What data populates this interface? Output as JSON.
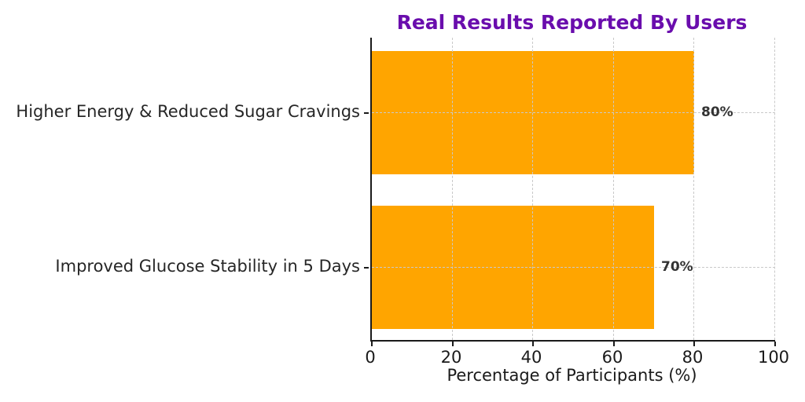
{
  "chart_data": {
    "type": "bar",
    "orientation": "horizontal",
    "title": "Real Results Reported By Users",
    "categories": [
      "Higher Energy & Reduced Sugar Cravings",
      "Improved Glucose Stability in 5 Days"
    ],
    "values": [
      80,
      70
    ],
    "value_labels": [
      "80%",
      "70%"
    ],
    "xlabel": "Percentage of Participants (%)",
    "xlim": [
      0,
      100
    ],
    "xticks": [
      0,
      20,
      40,
      60,
      80,
      100
    ],
    "grid": true,
    "legend": "none",
    "colors": {
      "bar": "#FFA500",
      "title": "#6a0dad",
      "axis_text": "#1a1a1a",
      "category_text": "#262626",
      "value_label_text": "#333333",
      "gridline": "#c9c9c9",
      "spine": "#1a1a1a"
    }
  }
}
